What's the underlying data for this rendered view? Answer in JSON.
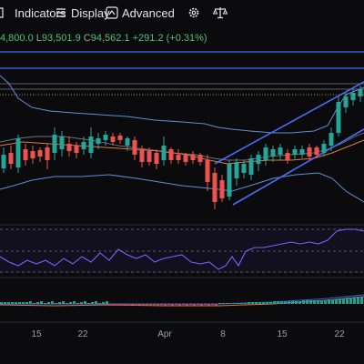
{
  "toolbar": {
    "indicators_label": "Indicators",
    "display_label": "Display",
    "advanced_label": "Advanced"
  },
  "ohlc": {
    "open": "4,800.0",
    "low_key": "L",
    "low": "93,501.9",
    "close_key": "C",
    "close": "94,562.1",
    "change": "+291.2 (+0.31%)"
  },
  "x_axis": {
    "labels": [
      "15",
      "22",
      "Apr",
      "8",
      "15",
      "22"
    ]
  },
  "colors": {
    "up": "#26a69a",
    "down": "#ef5350",
    "bollinger": "#5b8fd6",
    "channel": "#4a6cf7",
    "ma": "#e07b39",
    "rsi": "#7b61ff"
  },
  "icons": {
    "indicators": "indicators-icon",
    "display": "display-icon",
    "advanced": "advanced-icon",
    "settings": "gear-icon",
    "balance": "balance-icon"
  }
}
